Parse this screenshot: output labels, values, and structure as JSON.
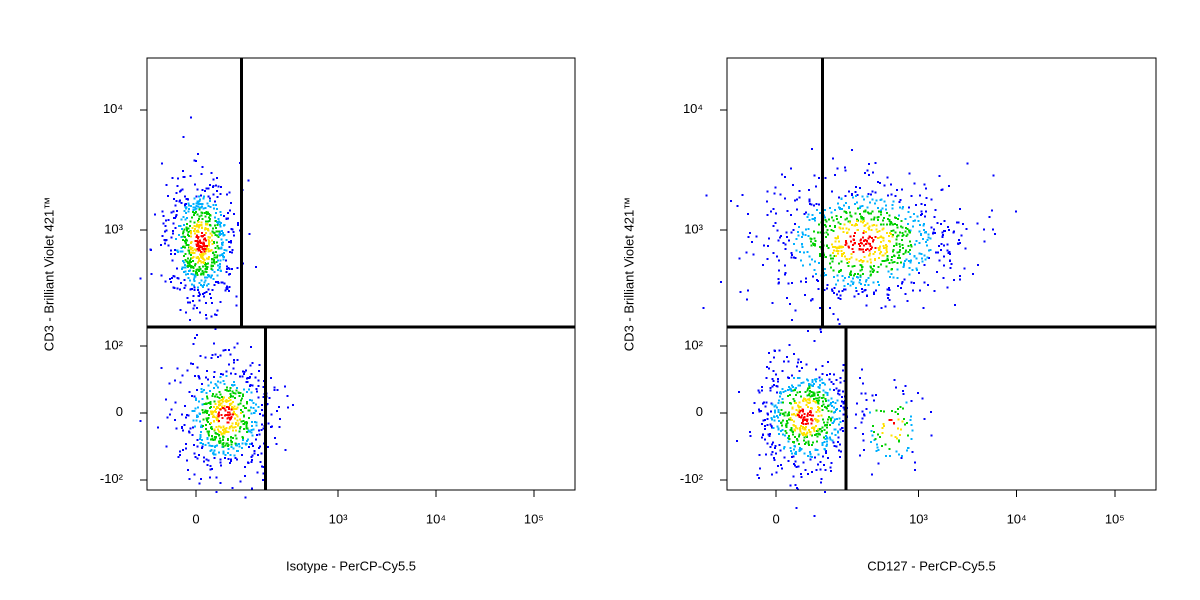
{
  "chart_data": [
    {
      "type": "scatter",
      "xlabel": "Isotype - PerCP-Cy5.5",
      "ylabel": "CD3 - Brilliant Violet 421™",
      "xscale": "biexponential",
      "yscale": "biexponential",
      "xlim": [
        -101,
        263000
      ],
      "ylim": [
        -125,
        27000
      ],
      "xticks": [
        0,
        {
          "value": 1000,
          "label": "10³"
        },
        {
          "value": 10000,
          "label": "10⁴"
        },
        {
          "value": 100000,
          "label": "10⁵"
        }
      ],
      "yticks": [
        {
          "value": -100,
          "label": "-10²"
        },
        0,
        {
          "value": 100,
          "label": "10²"
        },
        {
          "value": 1000,
          "label": "10³"
        },
        {
          "value": 10000,
          "label": "10⁴"
        }
      ],
      "gates": {
        "y": 150,
        "x_upper": 92,
        "x_lower": 176
      },
      "density_colors": [
        "#0000ff",
        "#00b0ff",
        "#00d000",
        "#ffe000",
        "#ff0000"
      ],
      "populations": [
        {
          "x": 7,
          "y": 800,
          "x_range": [
            -68,
            82
          ],
          "y_range": [
            173,
            2600
          ]
        },
        {
          "x": 52,
          "y": -3,
          "x_range": [
            -68,
            159
          ],
          "y_range": [
            -79,
            103
          ]
        }
      ]
    },
    {
      "type": "scatter",
      "xlabel": "CD127 - PerCP-Cy5.5",
      "ylabel": "CD3 - Brilliant Violet 421™",
      "xscale": "biexponential",
      "yscale": "biexponential",
      "xlim": [
        -101,
        263000
      ],
      "ylim": [
        -125,
        27000
      ],
      "xticks": [
        0,
        {
          "value": 1000,
          "label": "10³"
        },
        {
          "value": 10000,
          "label": "10⁴"
        },
        {
          "value": 100000,
          "label": "10⁵"
        }
      ],
      "yticks": [
        {
          "value": -100,
          "label": "-10²"
        },
        0,
        {
          "value": 100,
          "label": "10²"
        },
        {
          "value": 1000,
          "label": "10³"
        },
        {
          "value": 10000,
          "label": "10⁴"
        }
      ],
      "gates": {
        "y": 150,
        "x_upper": 94,
        "x_lower": 176
      },
      "density_colors": [
        "#0000ff",
        "#00b0ff",
        "#00d000",
        "#ffe000",
        "#ff0000"
      ],
      "populations": [
        {
          "x": 252,
          "y": 800,
          "x_range": [
            -68,
            2100
          ],
          "y_range": [
            173,
            2600
          ]
        },
        {
          "x": 52,
          "y": -3,
          "x_range": [
            -68,
            172
          ],
          "y_range": [
            -79,
            103
          ]
        },
        {
          "x": 511,
          "y": -15,
          "x_range": [
            196,
            1330
          ],
          "y_range": [
            -46,
            92
          ]
        }
      ]
    }
  ]
}
